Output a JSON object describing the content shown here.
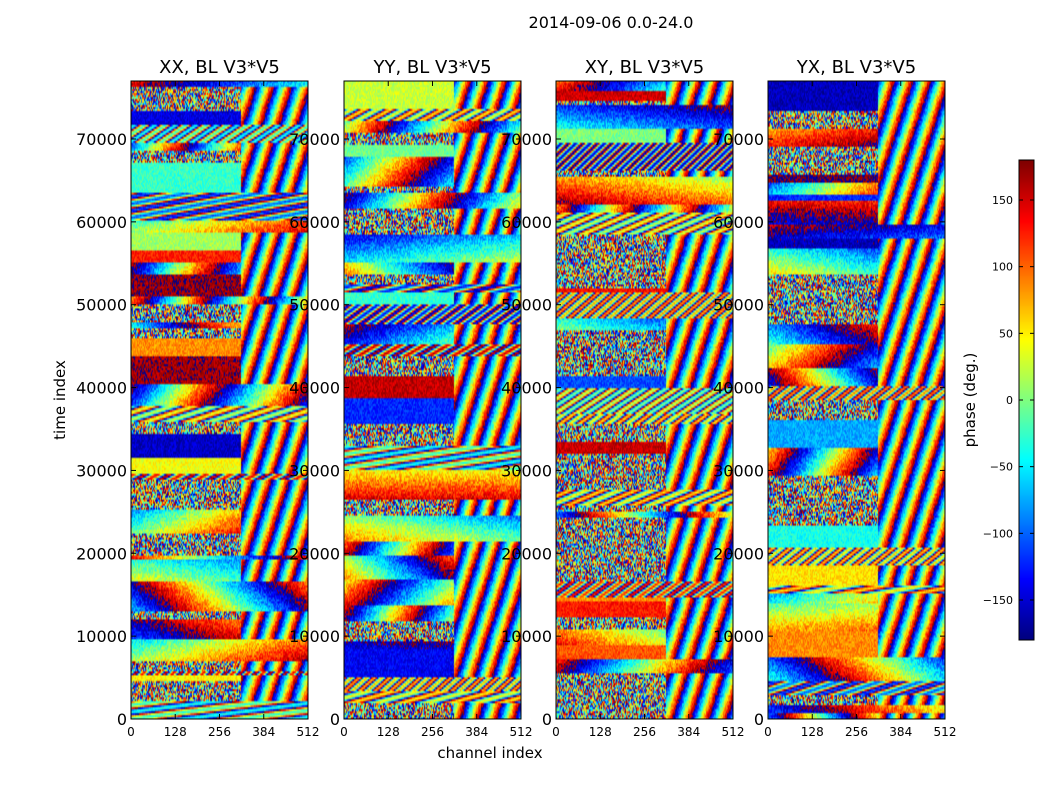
{
  "figure": {
    "suptitle": "2014-09-06 0.0-24.0",
    "xlabel": "channel index",
    "ylabel": "time index"
  },
  "colorbar": {
    "label": "phase (deg.)",
    "range": [
      -180,
      180
    ],
    "ticks": [
      {
        "value": 150,
        "label": "150"
      },
      {
        "value": 100,
        "label": "100"
      },
      {
        "value": 50,
        "label": "50"
      },
      {
        "value": 0,
        "label": "0"
      },
      {
        "value": -50,
        "label": "−50"
      },
      {
        "value": -100,
        "label": "−100"
      },
      {
        "value": -150,
        "label": "−150"
      }
    ],
    "colormap": "jet"
  },
  "chart_data": [
    {
      "type": "heatmap",
      "title": "XX, BL V3*V5",
      "x_range": [
        0,
        512
      ],
      "y_range": [
        0,
        77000
      ],
      "x_ticks": [
        0,
        128,
        256,
        384,
        512
      ],
      "y_ticks": [
        0,
        10000,
        20000,
        30000,
        40000,
        50000,
        60000,
        70000
      ],
      "value_range": [
        -180,
        180
      ],
      "value_label": "phase (deg.)"
    },
    {
      "type": "heatmap",
      "title": "YY, BL V3*V5",
      "x_range": [
        0,
        512
      ],
      "y_range": [
        0,
        77000
      ],
      "x_ticks": [
        0,
        128,
        256,
        384,
        512
      ],
      "y_ticks": [
        0,
        10000,
        20000,
        30000,
        40000,
        50000,
        60000,
        70000
      ],
      "value_range": [
        -180,
        180
      ],
      "value_label": "phase (deg.)"
    },
    {
      "type": "heatmap",
      "title": "XY, BL V3*V5",
      "x_range": [
        0,
        512
      ],
      "y_range": [
        0,
        77000
      ],
      "x_ticks": [
        0,
        128,
        256,
        384,
        512
      ],
      "y_ticks": [
        0,
        10000,
        20000,
        30000,
        40000,
        50000,
        60000,
        70000
      ],
      "value_range": [
        -180,
        180
      ],
      "value_label": "phase (deg.)"
    },
    {
      "type": "heatmap",
      "title": "YX, BL V3*V5",
      "x_range": [
        0,
        512
      ],
      "y_range": [
        0,
        77000
      ],
      "x_ticks": [
        0,
        128,
        256,
        384,
        512
      ],
      "y_ticks": [
        0,
        10000,
        20000,
        30000,
        40000,
        50000,
        60000,
        70000
      ],
      "value_range": [
        -180,
        180
      ],
      "value_label": "phase (deg.)"
    }
  ]
}
